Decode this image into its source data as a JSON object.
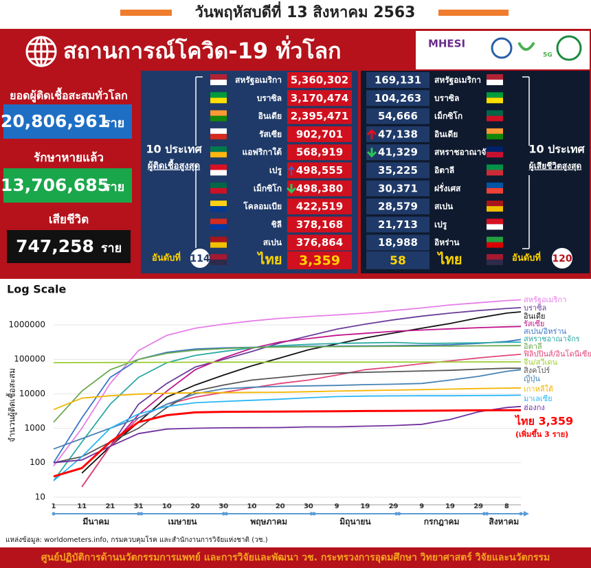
{
  "header": {
    "date": "วันพฤหัสบดีที่ 13 สิงหาคม 2563",
    "title": "สถานการณ์โควิด-19 ทั่วโลก",
    "logo": "MHESI",
    "logo2": "5G"
  },
  "summary": {
    "unit": "ราย",
    "cases_label": "ยอดผู้ติดเชื้อสะสมทั่วโลก",
    "cases": "20,806,961",
    "recovered_label": "รักษาหายแล้ว",
    "recovered": "13,706,685",
    "deaths_label": "เสียชีวิต",
    "deaths": "747,258"
  },
  "cases_table": {
    "heading": "10 ประเทศ",
    "subheading": "ผู้ติดเชื้อสูงสุด",
    "rows": [
      [
        "สหรัฐอเมริกา",
        "5,360,302"
      ],
      [
        "บราซิล",
        "3,170,474"
      ],
      [
        "อินเดีย",
        "2,395,471"
      ],
      [
        "รัสเซีย",
        "902,701"
      ],
      [
        "แอฟริกาใต้",
        "568,919"
      ],
      [
        "เปรู",
        "498,555"
      ],
      [
        "เม็กซิโก",
        "498,380"
      ],
      [
        "โคลอมเบีย",
        "422,519"
      ],
      [
        "ชิลี",
        "378,168"
      ],
      [
        "สเปน",
        "376,864"
      ]
    ],
    "rank_label": "อันดับที่",
    "rank": "114",
    "thai": "ไทย",
    "thai_value": "3,359"
  },
  "deaths_table": {
    "heading": "10 ประเทศ",
    "subheading": "ผู้เสียชีวิตสูงสุด",
    "rows": [
      [
        "169,131",
        "สหรัฐอเมริกา"
      ],
      [
        "104,263",
        "บราซิล"
      ],
      [
        "54,666",
        "เม็กซิโก"
      ],
      [
        "47,138",
        "อินเดีย"
      ],
      [
        "41,329",
        "สหราชอาณาจักร"
      ],
      [
        "35,225",
        "อิตาลี"
      ],
      [
        "30,371",
        "ฝรั่งเศส"
      ],
      [
        "28,579",
        "สเปน"
      ],
      [
        "21,713",
        "เปรู"
      ],
      [
        "18,988",
        "อิหร่าน"
      ]
    ],
    "rank_label": "อันดับที่",
    "rank": "120",
    "thai": "ไทย",
    "thai_value": "58"
  },
  "chart_data": {
    "type": "line",
    "title": "Log Scale",
    "y_label": "จำนวนผู้ติดเชื้อสะสม",
    "log_y": true,
    "ylim": [
      6,
      5000000
    ],
    "yticks": [
      10,
      100,
      1000,
      10000,
      100000,
      1000000
    ],
    "xlim": [
      0,
      165
    ],
    "xticks": [
      {
        "value": 0,
        "label": "1"
      },
      {
        "value": 10,
        "label": "11"
      },
      {
        "value": 20,
        "label": "21"
      },
      {
        "value": 30,
        "label": "31"
      },
      {
        "value": 40,
        "label": "10"
      },
      {
        "value": 50,
        "label": "20"
      },
      {
        "value": 60,
        "label": "30"
      },
      {
        "value": 70,
        "label": "10"
      },
      {
        "value": 80,
        "label": "20"
      },
      {
        "value": 90,
        "label": "30"
      },
      {
        "value": 100,
        "label": "9"
      },
      {
        "value": 110,
        "label": "19"
      },
      {
        "value": 120,
        "label": "29"
      },
      {
        "value": 130,
        "label": "9"
      },
      {
        "value": 140,
        "label": "19"
      },
      {
        "value": 150,
        "label": "29"
      },
      {
        "value": 160,
        "label": "8"
      }
    ],
    "months": [
      {
        "label": "มีนาคม",
        "start": 0,
        "end": 30
      },
      {
        "label": "เมษายน",
        "start": 31,
        "end": 60
      },
      {
        "label": "พฤษภาคม",
        "start": 61,
        "end": 91
      },
      {
        "label": "มิถุนายน",
        "start": 92,
        "end": 121
      },
      {
        "label": "กรกฎาคม",
        "start": 122,
        "end": 152
      },
      {
        "label": "สิงหาคม",
        "start": 153,
        "end": 165
      }
    ],
    "x": [
      0,
      10,
      20,
      30,
      40,
      50,
      60,
      70,
      80,
      90,
      100,
      110,
      120,
      130,
      140,
      150,
      160,
      165
    ],
    "series": [
      {
        "name": "สหรัฐอเมริกา",
        "color": "#e57ee8",
        "values": [
          80,
          1000,
          20000,
          180000,
          500000,
          800000,
          1050000,
          1300000,
          1550000,
          1750000,
          1950000,
          2200000,
          2600000,
          3100000,
          3800000,
          4400000,
          5100000,
          5360302
        ]
      },
      {
        "name": "บราซิล",
        "color": "#6a3d9a",
        "values": [
          null,
          null,
          300,
          5000,
          20000,
          60000,
          100000,
          170000,
          300000,
          480000,
          750000,
          1050000,
          1400000,
          1800000,
          2200000,
          2600000,
          3000000,
          3170474
        ]
      },
      {
        "name": "อินเดีย",
        "color": "#111111",
        "values": [
          null,
          50,
          300,
          1500,
          8000,
          18000,
          35000,
          65000,
          110000,
          190000,
          280000,
          420000,
          580000,
          800000,
          1100000,
          1600000,
          2200000,
          2395471
        ]
      },
      {
        "name": "รัสเซีย",
        "color": "#c0148c",
        "values": [
          null,
          20,
          300,
          2500,
          12000,
          50000,
          110000,
          210000,
          320000,
          400000,
          500000,
          570000,
          650000,
          710000,
          770000,
          830000,
          880000,
          902701
        ]
      },
      {
        "name": "สเปน/อิหร่าน",
        "color": "#3a75c4",
        "values": [
          100,
          2000,
          30000,
          100000,
          160000,
          200000,
          215000,
          225000,
          232000,
          239000,
          242000,
          246000,
          249000,
          255000,
          265000,
          290000,
          330000,
          376864
        ]
      },
      {
        "name": "สหราชอาณาจักร",
        "color": "#2aa9a3",
        "values": [
          30,
          400,
          5000,
          30000,
          80000,
          130000,
          170000,
          215000,
          250000,
          272000,
          290000,
          300000,
          310000,
          290000,
          295000,
          302000,
          312000,
          315000
        ]
      },
      {
        "name": "อิตาลี",
        "color": "#6aa84f",
        "values": [
          1500,
          12000,
          50000,
          100000,
          150000,
          185000,
          205000,
          220000,
          228000,
          232000,
          235000,
          238000,
          240000,
          242000,
          244000,
          247000,
          250000,
          251000
        ]
      },
      {
        "name": "ฟิลิปปินส์/อินโดนีเซีย",
        "color": "#e0457b",
        "values": [
          null,
          20,
          300,
          2000,
          5000,
          8000,
          11000,
          15000,
          20000,
          25000,
          35000,
          50000,
          60000,
          75000,
          90000,
          110000,
          130000,
          140000
        ]
      },
      {
        "name": "จีน/สวีเดน",
        "color": "#9acd32",
        "values": [
          80000,
          80500,
          81000,
          81500,
          82000,
          82500,
          82800,
          82900,
          83000,
          83000,
          83000,
          83100,
          83500,
          83600,
          84000,
          84300,
          84600,
          84700
        ]
      },
      {
        "name": "สิงคโปร์",
        "color": "#555555",
        "values": [
          100,
          150,
          400,
          1000,
          4000,
          12000,
          18000,
          25000,
          30000,
          36000,
          40000,
          42000,
          44000,
          46000,
          48000,
          52000,
          55000,
          55000
        ]
      },
      {
        "name": "ญี่ปุ่น",
        "color": "#4682b4",
        "values": [
          250,
          500,
          1000,
          2000,
          5000,
          10000,
          14000,
          15500,
          16500,
          17000,
          17500,
          18500,
          19000,
          20000,
          25000,
          32000,
          45000,
          50000
        ]
      },
      {
        "name": "เกาหลีใต้",
        "color": "#f4b400",
        "values": [
          3500,
          7500,
          8800,
          9800,
          10400,
          10700,
          10800,
          11000,
          11100,
          11500,
          12000,
          12400,
          12800,
          13200,
          13700,
          14200,
          14600,
          14800
        ]
      },
      {
        "name": "มาเลเซีย",
        "color": "#29b6f6",
        "values": [
          30,
          150,
          1000,
          2600,
          4300,
          5500,
          6000,
          6500,
          7000,
          7700,
          8300,
          8600,
          8700,
          8800,
          8800,
          8900,
          9000,
          9100
        ]
      },
      {
        "name": "ฮ่องกง",
        "color": "#7030a0",
        "values": [
          100,
          120,
          300,
          700,
          950,
          1000,
          1030,
          1040,
          1050,
          1100,
          1100,
          1150,
          1200,
          1300,
          1800,
          3000,
          4000,
          4300
        ]
      },
      {
        "name": "ไทย 3,359",
        "color": "#ff0000",
        "values": [
          40,
          70,
          400,
          1500,
          2400,
          2900,
          3000,
          3030,
          3050,
          3080,
          3120,
          3170,
          3190,
          3230,
          3270,
          3320,
          3350,
          3359
        ]
      }
    ],
    "note": "(เพิ่มขึ้น 3 ราย)"
  },
  "footer": {
    "source": "แหล่งข้อมูล: worldometers.info, กรมควบคุมโรค และสำนักงานการวิจัยแห่งชาติ (วช.)",
    "org": "ศูนย์ปฏิบัติการด้านนวัตกรรมการแพทย์ และการวิจัยและพัฒนา  วช.   กระทรวงการอุดมศึกษา วิทยาศาสตร์ วิจัยและนวัตกรรม"
  }
}
